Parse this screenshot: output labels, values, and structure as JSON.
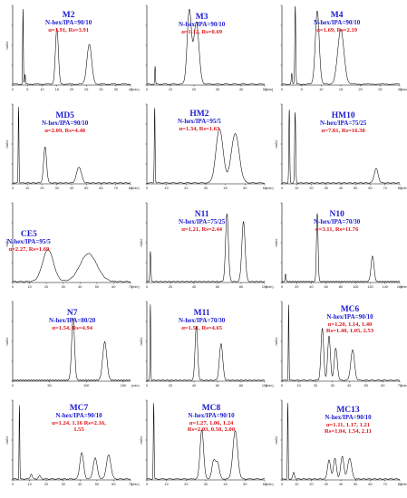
{
  "chart_data": [
    {
      "type": "line",
      "title": "M2",
      "subtitle": "N-hex/IPA=90/10",
      "annotation": "α=1.91, Rs=3.91",
      "xlabel": "(min)",
      "ylabel": "mAU",
      "xlim": [
        0,
        40
      ],
      "x_ticks": [
        0,
        5,
        10,
        15,
        20,
        25,
        30,
        35,
        40
      ],
      "ylim": [
        0,
        100
      ],
      "peaks": [
        {
          "t": 3.5,
          "h": 95,
          "w": 0.12
        },
        {
          "t": 4.2,
          "h": 12,
          "w": 0.15
        },
        {
          "t": 15.0,
          "h": 70,
          "w": 0.5
        },
        {
          "t": 26.0,
          "h": 50,
          "w": 0.8
        }
      ]
    },
    {
      "type": "line",
      "title": "M3",
      "subtitle": "N-hex/IPA=90/10",
      "annotation": "α=1.12, Rs=0.69",
      "xlabel": "[min]",
      "ylabel": "",
      "xlim": [
        0,
        50
      ],
      "x_ticks": [
        0,
        10,
        20,
        30,
        40,
        50
      ],
      "ylim": [
        0,
        100
      ],
      "peaks": [
        {
          "t": 3.5,
          "h": 22,
          "w": 0.15
        },
        {
          "t": 18.0,
          "h": 92,
          "w": 0.9
        },
        {
          "t": 21.0,
          "h": 78,
          "w": 1.1
        }
      ]
    },
    {
      "type": "line",
      "title": "M4",
      "subtitle": "N-hex/IPA=90/10",
      "annotation": "α=1.69, Rs=2.19",
      "xlabel": "[min]",
      "ylabel": "",
      "xlim": [
        0,
        30
      ],
      "x_ticks": [
        0,
        5,
        10,
        15,
        20,
        25,
        30
      ],
      "ylim": [
        0,
        100
      ],
      "peaks": [
        {
          "t": 2.5,
          "h": 14,
          "w": 0.12
        },
        {
          "t": 3.4,
          "h": 98,
          "w": 0.12
        },
        {
          "t": 9.0,
          "h": 92,
          "w": 0.5
        },
        {
          "t": 15.0,
          "h": 68,
          "w": 0.8
        }
      ]
    },
    {
      "type": "line",
      "title": "MD5",
      "subtitle": "N-hex/IPA=90/10",
      "annotation": "α=2.09, Rs=4.48",
      "xlabel": "(min)",
      "ylabel": "mAU",
      "xlim": [
        0,
        80
      ],
      "x_ticks": [
        0,
        10,
        20,
        30,
        40,
        50,
        60,
        70,
        80
      ],
      "ylim": [
        0,
        100
      ],
      "peaks": [
        {
          "t": 4.0,
          "h": 95,
          "w": 0.25
        },
        {
          "t": 22.0,
          "h": 45,
          "w": 1.0
        },
        {
          "t": 45.0,
          "h": 20,
          "w": 1.6
        }
      ]
    },
    {
      "type": "line",
      "title": "HM2",
      "subtitle": "N-hex/IPA=95/5",
      "annotation": "α=1.34, Rs=1.63",
      "xlabel": "(min)",
      "ylabel": "",
      "xlim": [
        0,
        60
      ],
      "x_ticks": [
        0,
        10,
        20,
        30,
        40,
        50,
        60
      ],
      "ylim": [
        0,
        100
      ],
      "peaks": [
        {
          "t": 4.0,
          "h": 95,
          "w": 0.2
        },
        {
          "t": 37.0,
          "h": 68,
          "w": 1.8
        },
        {
          "t": 45.0,
          "h": 62,
          "w": 2.0
        }
      ]
    },
    {
      "type": "line",
      "title": "HM10",
      "subtitle": "N-hex/IPA=75/25",
      "annotation": "α=7.81, Rs=16.38",
      "xlabel": "(min)",
      "ylabel": "mAU",
      "xlim": [
        0,
        80
      ],
      "x_ticks": [
        0,
        10,
        20,
        30,
        40,
        50,
        60,
        70,
        80
      ],
      "ylim": [
        0,
        100
      ],
      "peaks": [
        {
          "t": 5.0,
          "h": 92,
          "w": 0.3
        },
        {
          "t": 9.0,
          "h": 88,
          "w": 0.35
        },
        {
          "t": 64.0,
          "h": 18,
          "w": 1.3
        }
      ]
    },
    {
      "type": "line",
      "title": "CE5",
      "subtitle": "N-hex/IPA=95/5",
      "annotation": "α=2.27, Rs=1.69",
      "xlabel": "(min)",
      "ylabel": "mAU",
      "xlim": [
        0,
        70
      ],
      "x_ticks": [
        0,
        10,
        20,
        30,
        40,
        50,
        60,
        70
      ],
      "ylim": [
        0,
        100
      ],
      "peaks": [
        {
          "t": 21.0,
          "h": 40,
          "w": 3.2
        },
        {
          "t": 45.0,
          "h": 35,
          "w": 5.0
        }
      ]
    },
    {
      "type": "line",
      "title": "N11",
      "subtitle": "N-hex/IPA=75/25",
      "annotation": "α=1.21, Rs=2.44",
      "xlabel": "(min)",
      "ylabel": "mAU",
      "xlim": [
        0,
        100
      ],
      "x_ticks": [
        0,
        20,
        40,
        60,
        80,
        100
      ],
      "ylim": [
        0,
        100
      ],
      "peaks": [
        {
          "t": 3.0,
          "h": 38,
          "w": 0.4
        },
        {
          "t": 68.0,
          "h": 85,
          "w": 1.2
        },
        {
          "t": 82.0,
          "h": 75,
          "w": 1.4
        }
      ]
    },
    {
      "type": "line",
      "title": "N10",
      "subtitle": "N-hex/IPA=70/30",
      "annotation": "α=3.11, Rs=11.76",
      "xlabel": "(min)",
      "ylabel": "mAU",
      "xlim": [
        0,
        160
      ],
      "x_ticks": [
        0,
        20,
        40,
        60,
        80,
        100,
        120,
        140,
        160
      ],
      "ylim": [
        0,
        100
      ],
      "peaks": [
        {
          "t": 5.0,
          "h": 10,
          "w": 0.6
        },
        {
          "t": 48.0,
          "h": 85,
          "w": 1.1
        },
        {
          "t": 123.0,
          "h": 32,
          "w": 2.0
        }
      ]
    },
    {
      "type": "line",
      "title": "N7",
      "subtitle": "N-hex/IPA=80/20",
      "annotation": "α=1.54, Rs=4.94",
      "xlabel": "(min)",
      "ylabel": "mAU",
      "xlim": [
        0,
        160
      ],
      "x_ticks": [
        0,
        50,
        100,
        150
      ],
      "ylim": [
        0,
        100
      ],
      "peaks": [
        {
          "t": 82.0,
          "h": 78,
          "w": 2.0
        },
        {
          "t": 125.0,
          "h": 48,
          "w": 2.8
        }
      ]
    },
    {
      "type": "line",
      "title": "M11",
      "subtitle": "N-hex/IPA=70/30",
      "annotation": "α=1.51, Rs=4.65",
      "xlabel": "(min)",
      "ylabel": "mAU",
      "xlim": [
        0,
        100
      ],
      "x_ticks": [
        0,
        20,
        40,
        60,
        80,
        100
      ],
      "ylim": [
        0,
        100
      ],
      "peaks": [
        {
          "t": 3.0,
          "h": 95,
          "w": 0.3
        },
        {
          "t": 42.0,
          "h": 68,
          "w": 1.1
        },
        {
          "t": 63.0,
          "h": 46,
          "w": 1.4
        }
      ]
    },
    {
      "type": "line",
      "title": "MC6",
      "subtitle": "N-hex/IPA=90/10",
      "annotation": "α=1.20, 1.14, 1.40 Rs=1.40, 1.05, 2.53",
      "xlabel": "(min)",
      "ylabel": "mAU",
      "xlim": [
        0,
        70
      ],
      "x_ticks": [
        0,
        10,
        20,
        30,
        40,
        50,
        60,
        70
      ],
      "ylim": [
        0,
        100
      ],
      "peaks": [
        {
          "t": 4.0,
          "h": 95,
          "w": 0.2
        },
        {
          "t": 24.0,
          "h": 65,
          "w": 0.8
        },
        {
          "t": 28.0,
          "h": 55,
          "w": 0.8
        },
        {
          "t": 32.0,
          "h": 40,
          "w": 0.9
        },
        {
          "t": 42.0,
          "h": 38,
          "w": 1.1
        }
      ]
    },
    {
      "type": "line",
      "title": "MC7",
      "subtitle": "N-hex/IPA=90/10",
      "annotation": "α=1.24, 1.16 Rs=2.16, 1.55",
      "xlabel": "(min)",
      "ylabel": "mAU",
      "xlim": [
        0,
        70
      ],
      "x_ticks": [
        0,
        10,
        20,
        30,
        40,
        50,
        60,
        70
      ],
      "ylim": [
        0,
        100
      ],
      "peaks": [
        {
          "t": 4.0,
          "h": 92,
          "w": 0.2
        },
        {
          "t": 11.0,
          "h": 6,
          "w": 0.6
        },
        {
          "t": 16.0,
          "h": 4,
          "w": 0.7
        },
        {
          "t": 41.0,
          "h": 33,
          "w": 1.1
        },
        {
          "t": 49.0,
          "h": 26,
          "w": 1.2
        },
        {
          "t": 57.0,
          "h": 30,
          "w": 1.3
        }
      ]
    },
    {
      "type": "line",
      "title": "MC8",
      "subtitle": "N-hex/IPA=90/10",
      "annotation": "α=1.27, 1.06, 1.24 Rs=2.03, 0.50, 2.00",
      "xlabel": "(min)",
      "ylabel": "mAU",
      "xlim": [
        0,
        60
      ],
      "x_ticks": [
        0,
        10,
        20,
        30,
        40,
        50,
        60
      ],
      "ylim": [
        0,
        100
      ],
      "peaks": [
        {
          "t": 3.5,
          "h": 95,
          "w": 0.2
        },
        {
          "t": 28.0,
          "h": 62,
          "w": 0.9
        },
        {
          "t": 34.0,
          "h": 22,
          "w": 0.9
        },
        {
          "t": 36.0,
          "h": 20,
          "w": 0.9
        },
        {
          "t": 45.0,
          "h": 60,
          "w": 1.2
        }
      ]
    },
    {
      "type": "line",
      "title": "MC13",
      "subtitle": "N-hex/IPA=90/10",
      "annotation": "α=1.11, 1.17, 1.21 Rs=1.04, 1.54, 2.11",
      "xlabel": "(min)",
      "ylabel": "mAU",
      "xlim": [
        0,
        80
      ],
      "x_ticks": [
        0,
        10,
        20,
        30,
        40,
        50,
        60,
        70,
        80
      ],
      "ylim": [
        0,
        100
      ],
      "peaks": [
        {
          "t": 4.0,
          "h": 95,
          "w": 0.25
        },
        {
          "t": 8.0,
          "h": 8,
          "w": 0.6
        },
        {
          "t": 32.0,
          "h": 24,
          "w": 1.0
        },
        {
          "t": 36.0,
          "h": 26,
          "w": 1.0
        },
        {
          "t": 41.0,
          "h": 28,
          "w": 1.1
        },
        {
          "t": 46.0,
          "h": 26,
          "w": 1.3
        }
      ]
    }
  ]
}
